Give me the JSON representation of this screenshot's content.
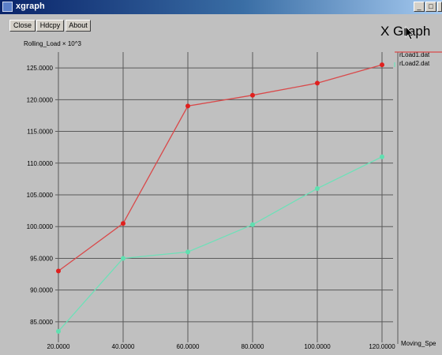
{
  "window": {
    "title": "xgraph",
    "controls": {
      "minimize": "_",
      "maximize": "□",
      "close": "×"
    }
  },
  "toolbar": {
    "close_label": "Close",
    "hdcpy_label": "Hdcpy",
    "about_label": "About"
  },
  "app_label": "X Graph",
  "chart_data": {
    "type": "line",
    "ylabel": "Rolling_Load × 10^3",
    "xlabel": "Moving_Spe",
    "xlim": [
      20,
      120
    ],
    "ylim": [
      82.5,
      127.5
    ],
    "grid": true,
    "legend_position": "right, top",
    "x_ticks": [
      "20.0000",
      "40.0000",
      "60.0000",
      "80.0000",
      "100.0000",
      "120.0000"
    ],
    "y_ticks": [
      "85.0000",
      "90.0000",
      "95.0000",
      "100.0000",
      "105.0000",
      "110.0000",
      "115.0000",
      "120.0000",
      "125.0000"
    ],
    "x": [
      20,
      40,
      60,
      80,
      100,
      120
    ],
    "series": [
      {
        "name": "rLoad1.dat",
        "color": "#d9494a",
        "values": [
          93.0,
          100.5,
          119.0,
          120.7,
          122.6,
          125.5
        ]
      },
      {
        "name": "rLoad2.dat",
        "color": "#6ee0b8",
        "values": [
          83.5,
          95.0,
          96.0,
          100.3,
          106.0,
          111.0
        ]
      }
    ]
  }
}
